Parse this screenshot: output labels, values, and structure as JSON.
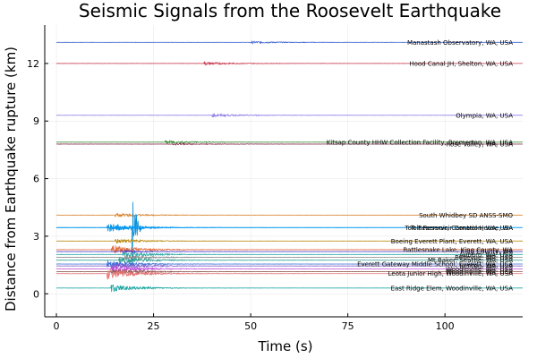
{
  "chart_data": {
    "type": "line",
    "title": "Seismic Signals from the Roosevelt Earthquake",
    "xlabel": "Time (s)",
    "ylabel": "Distance from Earthquake rupture (km)",
    "xlim": [
      -3,
      120
    ],
    "ylim": [
      -1.2,
      14
    ],
    "xticks": [
      0,
      25,
      50,
      75,
      100
    ],
    "yticks": [
      0,
      3,
      6,
      9,
      12
    ],
    "grid": true,
    "legend": "none",
    "series": [
      {
        "name": "Manastash Observatory, WA, USA",
        "offset": 13.1,
        "color": "#3b63d0",
        "arrival": 50,
        "amp": 0.05
      },
      {
        "name": "Hood Canal JH, Shelton, WA, USA",
        "offset": 12.0,
        "color": "#c93a4e",
        "arrival": 38,
        "amp": 0.07
      },
      {
        "name": "Olympia, WA, USA",
        "offset": 9.3,
        "color": "#8c7ae6",
        "arrival": 40,
        "amp": 0.07
      },
      {
        "name": "Kitsap County HHW Collection Facility, Bremerton, WA, USA",
        "offset": 7.9,
        "color": "#3a8f3a",
        "arrival": 28,
        "amp": 0.08
      },
      {
        "name": "Rose Valley, WA, USA",
        "offset": 7.8,
        "color": "#8b2c4a",
        "arrival": 30,
        "amp": 0.04
      },
      {
        "name": "South Whidbey SD ANSS-SMO",
        "offset": 4.1,
        "color": "#d9822b",
        "arrival": 15,
        "amp": 0.1
      },
      {
        "name": "Tolt Reservoir, Carnation, WA, USA",
        "offset": 3.45,
        "color": "#0a8fd9",
        "arrival": 13,
        "amp": 0.25,
        "big": true
      },
      {
        "name": "Tolt Reservoir Control House, WA",
        "offset": 3.45,
        "color": "#009af9",
        "arrival": 15,
        "amp": 0.12
      },
      {
        "name": "Boeing Everett Plant, Everett, WA, USA",
        "offset": 2.75,
        "color": "#b8860b",
        "arrival": 15,
        "amp": 0.12
      },
      {
        "name": "Rattlesnake Lake, King County, WA",
        "offset": 2.3,
        "color": "#e26a3b",
        "arrival": 14,
        "amp": 0.25
      },
      {
        "name": "King County, WA",
        "offset": 2.2,
        "color": "#4b3ccf",
        "arrival": 16,
        "amp": 0.06
      },
      {
        "name": "Auburn, WA, USA",
        "offset": 2.05,
        "color": "#1fa3a3",
        "arrival": 17,
        "amp": 0.15
      },
      {
        "name": "Bellevue, WA, USA",
        "offset": 1.9,
        "color": "#888888",
        "arrival": 17,
        "amp": 0.12
      },
      {
        "name": "Mt Baker, Seattle, WA, USA",
        "offset": 1.75,
        "color": "#2a9d8f",
        "arrival": 16,
        "amp": 0.18
      },
      {
        "name": "Everett Gateway Middle School, Everett, WA, USA",
        "offset": 1.55,
        "color": "#3e6fd8",
        "arrival": 13,
        "amp": 0.2
      },
      {
        "name": "Renton, WA, USA",
        "offset": 1.45,
        "color": "#7a5ccc",
        "arrival": 14,
        "amp": 0.15
      },
      {
        "name": "Woodinville, WA, USA",
        "offset": 1.3,
        "color": "#c24bd6",
        "arrival": 14,
        "amp": 0.22
      },
      {
        "name": "Woodinville, WA, USA",
        "offset": 1.15,
        "color": "#8c564b",
        "arrival": 14,
        "amp": 0.15
      },
      {
        "name": "Leota Junior High, Woodinville, WA, USA",
        "offset": 1.05,
        "color": "#e36f6f",
        "arrival": 13,
        "amp": 0.3
      },
      {
        "name": "East Ridge Elem, Woodinville, WA, USA",
        "offset": 0.3,
        "color": "#16a3a0",
        "arrival": 14,
        "amp": 0.2
      }
    ]
  }
}
